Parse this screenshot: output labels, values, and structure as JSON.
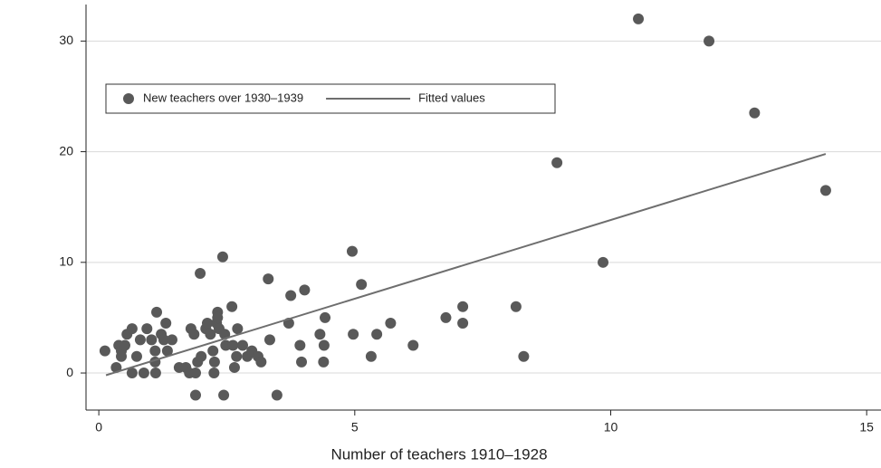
{
  "chart_data": {
    "type": "scatter",
    "x_label": "Number of teachers 1910–1928",
    "xlim": [
      -0.25,
      15.28
    ],
    "ylim": [
      -3.35,
      33.3
    ],
    "xticks": [
      0,
      5,
      10,
      15
    ],
    "yticks": [
      0,
      10,
      20,
      30
    ],
    "grid": true,
    "legend": "top-left",
    "series": [
      {
        "name": "New teachers over 1930–1939",
        "color": "#595959",
        "x": [
          0.12,
          0.34,
          0.39,
          0.44,
          0.44,
          0.51,
          0.55,
          0.65,
          0.65,
          0.74,
          0.81,
          0.88,
          0.94,
          1.03,
          1.1,
          1.1,
          1.11,
          1.13,
          1.22,
          1.27,
          1.31,
          1.34,
          1.43,
          1.57,
          1.7,
          1.77,
          1.8,
          1.86,
          1.89,
          1.89,
          1.93,
          1.98,
          2.0,
          2.09,
          2.12,
          2.18,
          2.23,
          2.25,
          2.26,
          2.3,
          2.32,
          2.32,
          2.35,
          2.42,
          2.44,
          2.46,
          2.48,
          2.6,
          2.62,
          2.65,
          2.69,
          2.71,
          2.81,
          2.9,
          2.99,
          3.11,
          3.17,
          3.31,
          3.34,
          3.48,
          3.71,
          3.75,
          3.93,
          3.96,
          4.02,
          4.32,
          4.39,
          4.4,
          4.42,
          4.95,
          4.97,
          5.13,
          5.32,
          5.43,
          5.7,
          6.14,
          6.78,
          7.11,
          7.11,
          8.15,
          8.3,
          8.95,
          9.85,
          10.54,
          11.92,
          12.81,
          14.2
        ],
        "values": [
          2,
          0.5,
          2.5,
          2,
          1.5,
          2.5,
          3.5,
          4,
          0,
          1.5,
          3,
          0,
          4,
          3,
          2,
          1,
          0,
          5.5,
          3.5,
          3,
          4.5,
          2,
          3,
          0.5,
          0.5,
          0,
          4,
          3.5,
          0,
          -2,
          1,
          9,
          1.5,
          4,
          4.5,
          3.5,
          2,
          0,
          1,
          4.5,
          5.5,
          5,
          4,
          10.5,
          -2,
          3.5,
          2.5,
          6,
          2.5,
          0.5,
          1.5,
          4,
          2.5,
          1.5,
          2,
          1.5,
          1,
          8.5,
          3,
          -2,
          4.5,
          7,
          2.5,
          1,
          7.5,
          3.5,
          1,
          2.5,
          5,
          11,
          3.5,
          8,
          1.5,
          3.5,
          4.5,
          2.5,
          5,
          4.5,
          6,
          6,
          1.5,
          19,
          10,
          32,
          30,
          23.5,
          16.5
        ]
      },
      {
        "name": "Fitted values",
        "type": "line",
        "color": "#6e6e6e",
        "x": [
          0.14,
          14.2
        ],
        "values": [
          -0.2,
          19.8
        ]
      }
    ]
  }
}
